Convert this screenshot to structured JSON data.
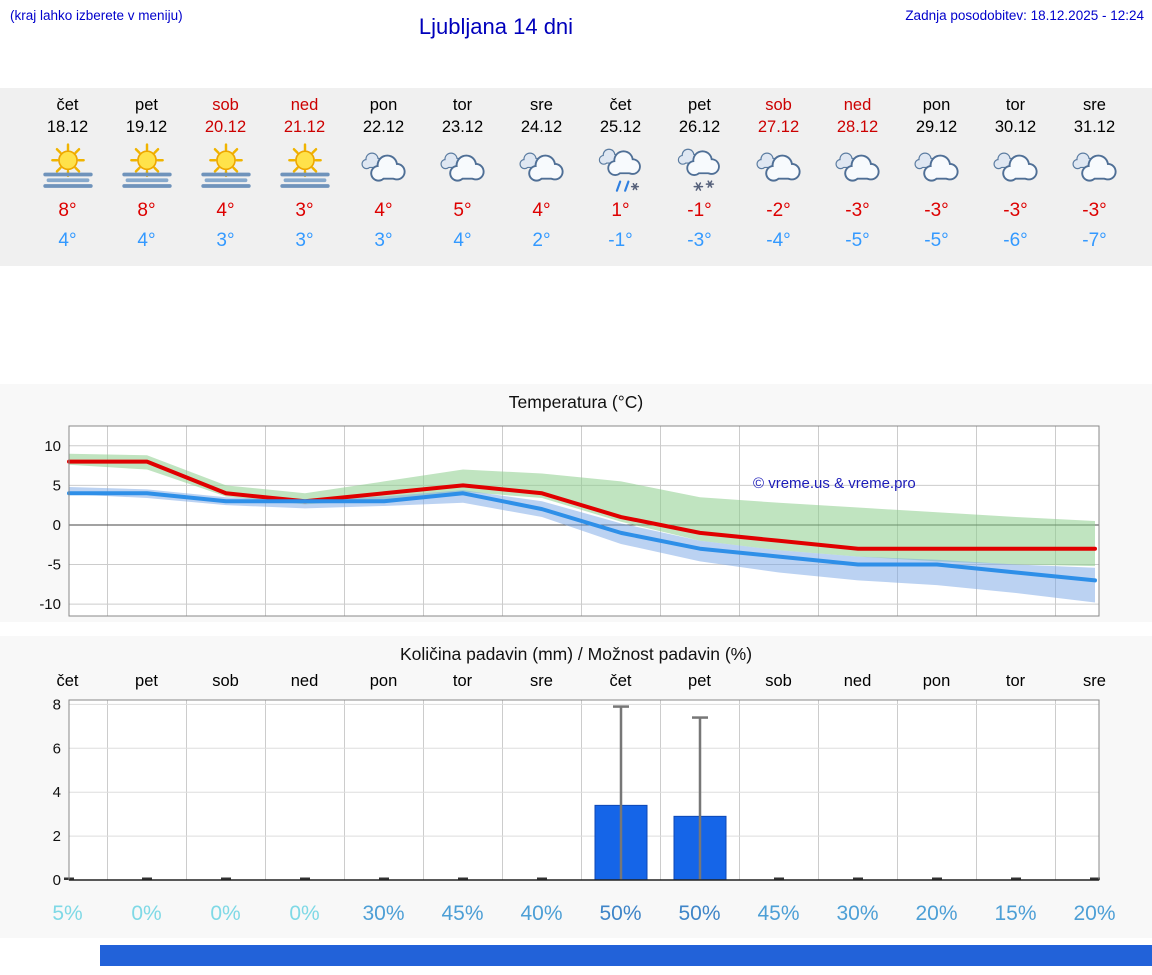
{
  "header": {
    "hint": "(kraj lahko izberete v meniju)",
    "title": "Ljubljana 14 dni",
    "updated": "Zadnja posodobitev: 18.12.2025 - 12:24"
  },
  "colors": {
    "link_blue": "#0000cc",
    "weekend_red": "#cc0000",
    "max_temp_red": "#dd0000",
    "min_temp_blue": "#3399ff"
  },
  "forecast": {
    "days": [
      {
        "name": "čet",
        "date": "18.12",
        "weekend": false,
        "icon": "sun-fog",
        "max": "8°",
        "min": "4°"
      },
      {
        "name": "pet",
        "date": "19.12",
        "weekend": false,
        "icon": "sun-fog",
        "max": "8°",
        "min": "4°"
      },
      {
        "name": "sob",
        "date": "20.12",
        "weekend": true,
        "icon": "sun-fog",
        "max": "4°",
        "min": "3°"
      },
      {
        "name": "ned",
        "date": "21.12",
        "weekend": true,
        "icon": "sun-fog",
        "max": "3°",
        "min": "3°"
      },
      {
        "name": "pon",
        "date": "22.12",
        "weekend": false,
        "icon": "cloudy",
        "max": "4°",
        "min": "3°"
      },
      {
        "name": "tor",
        "date": "23.12",
        "weekend": false,
        "icon": "cloudy",
        "max": "5°",
        "min": "4°"
      },
      {
        "name": "sre",
        "date": "24.12",
        "weekend": false,
        "icon": "cloudy",
        "max": "4°",
        "min": "2°"
      },
      {
        "name": "čet",
        "date": "25.12",
        "weekend": false,
        "icon": "sleet",
        "max": "1°",
        "min": "-1°"
      },
      {
        "name": "pet",
        "date": "26.12",
        "weekend": false,
        "icon": "snow",
        "max": "-1°",
        "min": "-3°"
      },
      {
        "name": "sob",
        "date": "27.12",
        "weekend": true,
        "icon": "cloudy",
        "max": "-2°",
        "min": "-4°"
      },
      {
        "name": "ned",
        "date": "28.12",
        "weekend": true,
        "icon": "cloudy",
        "max": "-3°",
        "min": "-5°"
      },
      {
        "name": "pon",
        "date": "29.12",
        "weekend": false,
        "icon": "cloudy",
        "max": "-3°",
        "min": "-5°"
      },
      {
        "name": "tor",
        "date": "30.12",
        "weekend": false,
        "icon": "cloudy",
        "max": "-3°",
        "min": "-6°"
      },
      {
        "name": "sre",
        "date": "31.12",
        "weekend": false,
        "icon": "cloudy",
        "max": "-3°",
        "min": "-7°"
      }
    ]
  },
  "chart_data": [
    {
      "type": "line",
      "title": "Temperatura (°C)",
      "x_categories": [
        "čet",
        "pet",
        "sob",
        "ned",
        "pon",
        "tor",
        "sre",
        "čet",
        "pet",
        "sob",
        "ned",
        "pon",
        "tor",
        "sre"
      ],
      "ylim": [
        -11.5,
        12.5
      ],
      "yticks": [
        10,
        5,
        0,
        -5,
        -10
      ],
      "grid": true,
      "watermark": "© vreme.us & vreme.pro",
      "series": [
        {
          "name": "max-temp",
          "color": "#e00000",
          "values": [
            8,
            8,
            4,
            3,
            4,
            5,
            4,
            1,
            -1,
            -2,
            -3,
            -3,
            -3,
            -3
          ],
          "band_hi": [
            9,
            8.8,
            5,
            4,
            5.5,
            7,
            6.5,
            5.5,
            3.5,
            2.8,
            2.2,
            1.6,
            1,
            0.5
          ],
          "band_lo": [
            7.6,
            7,
            3.6,
            2.6,
            3.2,
            4.2,
            3.4,
            0.4,
            -2,
            -3.2,
            -4,
            -4.6,
            -5,
            -5.2
          ],
          "band_color": "rgba(140,205,140,0.55)"
        },
        {
          "name": "min-temp",
          "color": "#2e8fe8",
          "values": [
            4,
            4,
            3,
            3,
            3,
            4,
            2,
            -1,
            -3,
            -4,
            -5,
            -5,
            -6,
            -7
          ],
          "band_hi": [
            4.8,
            4.5,
            3.5,
            3.1,
            3.6,
            4.4,
            3,
            0.2,
            -2,
            -3.2,
            -4,
            -4.4,
            -5,
            -5.4
          ],
          "band_lo": [
            3.9,
            3.4,
            2.5,
            2.1,
            2.4,
            2.8,
            1,
            -2.4,
            -4.6,
            -6,
            -7,
            -7.6,
            -8.6,
            -9.8
          ],
          "band_color": "rgba(120,165,230,0.5)"
        }
      ]
    },
    {
      "type": "bar",
      "title": "Količina padavin (mm) / Možnost padavin (%)",
      "categories": [
        "čet",
        "pet",
        "sob",
        "ned",
        "pon",
        "tor",
        "sre",
        "čet",
        "pet",
        "sob",
        "ned",
        "pon",
        "tor",
        "sre"
      ],
      "values": [
        0,
        0,
        0,
        0,
        0,
        0,
        0,
        3.4,
        2.9,
        0,
        0,
        0,
        0,
        0
      ],
      "whisker_max": [
        null,
        null,
        null,
        null,
        null,
        null,
        null,
        7.9,
        7.4,
        null,
        null,
        null,
        null,
        null
      ],
      "bar_color": "#1565e8",
      "ylim": [
        0,
        8.2
      ],
      "yticks": [
        0,
        2,
        4,
        6,
        8
      ],
      "grid": true,
      "probabilities": [
        {
          "label": "5%",
          "color": "#7fd9e6"
        },
        {
          "label": "0%",
          "color": "#7fd9e6"
        },
        {
          "label": "0%",
          "color": "#7fd9e6"
        },
        {
          "label": "0%",
          "color": "#7fd9e6"
        },
        {
          "label": "30%",
          "color": "#4d9fd6"
        },
        {
          "label": "45%",
          "color": "#4d9fd6"
        },
        {
          "label": "40%",
          "color": "#4d9fd6"
        },
        {
          "label": "50%",
          "color": "#3f85c8"
        },
        {
          "label": "50%",
          "color": "#3f85c8"
        },
        {
          "label": "45%",
          "color": "#4d9fd6"
        },
        {
          "label": "30%",
          "color": "#4d9fd6"
        },
        {
          "label": "20%",
          "color": "#4d9fd6"
        },
        {
          "label": "15%",
          "color": "#4d9fd6"
        },
        {
          "label": "20%",
          "color": "#4d9fd6"
        }
      ]
    }
  ],
  "footer": {
    "banner_color": "#2262d9"
  }
}
